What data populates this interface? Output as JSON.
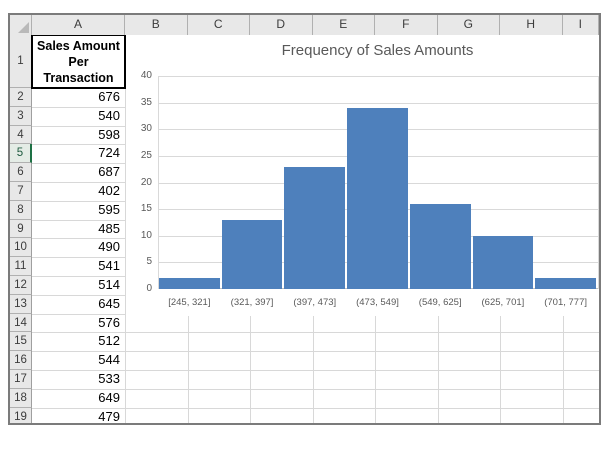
{
  "sheet": {
    "column_headers": [
      "A",
      "B",
      "C",
      "D",
      "E",
      "F",
      "G",
      "H",
      "I"
    ],
    "row_headers": [
      "1",
      "2",
      "3",
      "4",
      "5",
      "6",
      "7",
      "8",
      "9",
      "10",
      "11",
      "12",
      "13",
      "14",
      "15",
      "16",
      "17",
      "18",
      "19"
    ],
    "selected_row": "5",
    "a1_lines": [
      "Sales Amount",
      "Per",
      "Transaction"
    ],
    "a1_text": "Sales Amount Per Transaction",
    "values": [
      "676",
      "540",
      "598",
      "724",
      "687",
      "402",
      "595",
      "485",
      "490",
      "541",
      "514",
      "645",
      "576",
      "512",
      "544",
      "533",
      "649",
      "479"
    ]
  },
  "chart_data": {
    "type": "bar",
    "title": "Frequency of Sales Amounts",
    "categories": [
      "[245, 321]",
      "(321, 397]",
      "(397, 473]",
      "(473, 549]",
      "(549, 625]",
      "(625, 701]",
      "(701, 777]"
    ],
    "values": [
      2,
      13,
      23,
      34,
      16,
      10,
      2
    ],
    "xlabel": "",
    "ylabel": "",
    "ylim": [
      0,
      40
    ],
    "yticks": [
      0,
      5,
      10,
      15,
      20,
      25,
      30,
      35,
      40
    ],
    "grid": true,
    "legend_position": "none",
    "gap_between_bars": "minimal"
  },
  "colors": {
    "bar_fill": "#4e80bc",
    "chart_text": "#595959",
    "chart_gridline": "#d9d9d9",
    "header_bg": "#e8e8e8",
    "selected_row_green": "#1e7145",
    "sheet_gridline": "#d8d8d8",
    "frame_border": "#7b7b7b"
  }
}
